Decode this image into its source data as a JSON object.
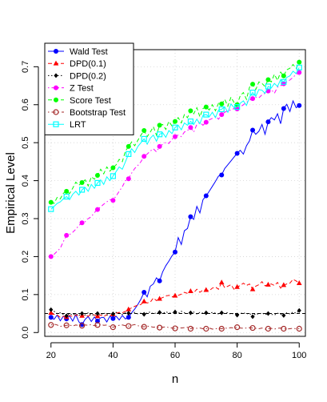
{
  "chart_data": {
    "type": "line",
    "title": "",
    "xlabel": "n",
    "ylabel": "Empirical Level",
    "xlim": [
      18,
      102
    ],
    "ylim": [
      -0.01,
      0.745
    ],
    "xticks": [
      20,
      40,
      60,
      80,
      100
    ],
    "yticks": [
      0.0,
      0.1,
      0.2,
      0.3,
      0.4,
      0.5,
      0.6,
      0.7
    ],
    "ytick_labels": [
      "0.0",
      "0.1",
      "0.2",
      "0.3",
      "0.4",
      "0.5",
      "0.6",
      "0.7"
    ],
    "grid": true,
    "reference_line": 0.05,
    "legend_position": "top-left",
    "x": [
      20,
      21,
      22,
      23,
      24,
      25,
      26,
      27,
      28,
      29,
      30,
      31,
      32,
      33,
      34,
      35,
      36,
      37,
      38,
      39,
      40,
      41,
      42,
      43,
      44,
      45,
      46,
      47,
      48,
      49,
      50,
      51,
      52,
      53,
      54,
      55,
      56,
      57,
      58,
      59,
      60,
      61,
      62,
      63,
      64,
      65,
      66,
      67,
      68,
      69,
      70,
      71,
      72,
      73,
      74,
      75,
      76,
      77,
      78,
      79,
      80,
      81,
      82,
      83,
      84,
      85,
      86,
      87,
      88,
      89,
      90,
      91,
      92,
      93,
      94,
      95,
      96,
      97,
      98,
      99,
      100
    ],
    "marker_x": [
      20,
      25,
      30,
      35,
      40,
      45,
      50,
      55,
      60,
      65,
      70,
      75,
      80,
      85,
      90,
      95,
      100
    ],
    "series": [
      {
        "name": "Wald Test",
        "color": "#0000ff",
        "marker": "circle-filled",
        "line": "solid",
        "values": [
          0.04,
          0.035,
          0.046,
          0.031,
          0.043,
          0.036,
          0.044,
          0.03,
          0.047,
          0.028,
          0.021,
          0.035,
          0.042,
          0.029,
          0.041,
          0.03,
          0.039,
          0.04,
          0.028,
          0.043,
          0.037,
          0.043,
          0.033,
          0.045,
          0.036,
          0.04,
          0.052,
          0.062,
          0.074,
          0.088,
          0.106,
          0.094,
          0.122,
          0.128,
          0.144,
          0.136,
          0.16,
          0.176,
          0.188,
          0.202,
          0.212,
          0.25,
          0.232,
          0.268,
          0.274,
          0.305,
          0.298,
          0.332,
          0.315,
          0.35,
          0.36,
          0.372,
          0.385,
          0.398,
          0.412,
          0.415,
          0.432,
          0.442,
          0.452,
          0.462,
          0.472,
          0.48,
          0.47,
          0.492,
          0.505,
          0.533,
          0.522,
          0.53,
          0.548,
          0.522,
          0.555,
          0.566,
          0.56,
          0.576,
          0.55,
          0.59,
          0.601,
          0.582,
          0.61,
          0.592,
          0.598
        ]
      },
      {
        "name": "DPD(0.1)",
        "color": "#ff0000",
        "marker": "triangle-filled",
        "line": "dashed",
        "values": [
          0.052,
          0.048,
          0.046,
          0.04,
          0.043,
          0.041,
          0.045,
          0.042,
          0.046,
          0.044,
          0.044,
          0.046,
          0.043,
          0.048,
          0.046,
          0.043,
          0.046,
          0.042,
          0.047,
          0.045,
          0.048,
          0.051,
          0.053,
          0.052,
          0.056,
          0.061,
          0.065,
          0.069,
          0.072,
          0.074,
          0.082,
          0.078,
          0.08,
          0.091,
          0.084,
          0.089,
          0.092,
          0.096,
          0.098,
          0.094,
          0.097,
          0.098,
          0.101,
          0.106,
          0.103,
          0.109,
          0.105,
          0.114,
          0.106,
          0.112,
          0.112,
          0.11,
          0.117,
          0.12,
          0.114,
          0.132,
          0.118,
          0.122,
          0.126,
          0.114,
          0.12,
          0.124,
          0.13,
          0.124,
          0.128,
          0.114,
          0.122,
          0.126,
          0.134,
          0.123,
          0.126,
          0.128,
          0.124,
          0.132,
          0.117,
          0.125,
          0.128,
          0.13,
          0.14,
          0.136,
          0.13
        ]
      },
      {
        "name": "DPD(0.2)",
        "color": "#000000",
        "marker": "diamond-filled",
        "line": "dotted",
        "values": [
          0.06,
          0.056,
          0.05,
          0.052,
          0.048,
          0.044,
          0.05,
          0.046,
          0.05,
          0.045,
          0.05,
          0.046,
          0.052,
          0.045,
          0.048,
          0.05,
          0.047,
          0.052,
          0.046,
          0.05,
          0.049,
          0.053,
          0.05,
          0.048,
          0.052,
          0.051,
          0.05,
          0.053,
          0.049,
          0.051,
          0.048,
          0.052,
          0.054,
          0.049,
          0.052,
          0.053,
          0.05,
          0.055,
          0.051,
          0.052,
          0.054,
          0.05,
          0.056,
          0.052,
          0.05,
          0.052,
          0.054,
          0.049,
          0.053,
          0.051,
          0.052,
          0.05,
          0.053,
          0.051,
          0.049,
          0.052,
          0.05,
          0.053,
          0.048,
          0.051,
          0.046,
          0.05,
          0.052,
          0.049,
          0.051,
          0.042,
          0.05,
          0.048,
          0.052,
          0.047,
          0.05,
          0.048,
          0.046,
          0.051,
          0.048,
          0.045,
          0.052,
          0.049,
          0.054,
          0.051,
          0.058
        ]
      },
      {
        "name": "Z Test",
        "color": "#ff00ff",
        "marker": "circle-filled",
        "line": "dotdash",
        "values": [
          0.2,
          0.206,
          0.214,
          0.222,
          0.24,
          0.256,
          0.258,
          0.264,
          0.272,
          0.282,
          0.289,
          0.292,
          0.3,
          0.305,
          0.316,
          0.324,
          0.331,
          0.338,
          0.344,
          0.35,
          0.348,
          0.36,
          0.372,
          0.384,
          0.4,
          0.405,
          0.42,
          0.432,
          0.44,
          0.45,
          0.464,
          0.47,
          0.478,
          0.484,
          0.476,
          0.49,
          0.496,
          0.501,
          0.498,
          0.509,
          0.516,
          0.52,
          0.516,
          0.528,
          0.532,
          0.54,
          0.528,
          0.548,
          0.553,
          0.546,
          0.554,
          0.56,
          0.564,
          0.57,
          0.562,
          0.574,
          0.58,
          0.584,
          0.586,
          0.59,
          0.589,
          0.594,
          0.6,
          0.606,
          0.612,
          0.616,
          0.62,
          0.618,
          0.626,
          0.63,
          0.636,
          0.64,
          0.63,
          0.646,
          0.65,
          0.655,
          0.66,
          0.665,
          0.672,
          0.68,
          0.685
        ]
      },
      {
        "name": "Score Test",
        "color": "#00ff00",
        "marker": "circle-filled",
        "line": "dashed",
        "values": [
          0.343,
          0.34,
          0.356,
          0.352,
          0.367,
          0.372,
          0.366,
          0.38,
          0.396,
          0.388,
          0.395,
          0.402,
          0.386,
          0.41,
          0.404,
          0.414,
          0.43,
          0.418,
          0.436,
          0.425,
          0.434,
          0.442,
          0.456,
          0.45,
          0.478,
          0.49,
          0.502,
          0.492,
          0.506,
          0.52,
          0.532,
          0.516,
          0.528,
          0.542,
          0.52,
          0.546,
          0.548,
          0.535,
          0.556,
          0.544,
          0.556,
          0.566,
          0.552,
          0.574,
          0.566,
          0.584,
          0.576,
          0.592,
          0.568,
          0.59,
          0.594,
          0.586,
          0.6,
          0.584,
          0.604,
          0.602,
          0.614,
          0.596,
          0.62,
          0.606,
          0.6,
          0.624,
          0.632,
          0.614,
          0.646,
          0.654,
          0.64,
          0.66,
          0.656,
          0.648,
          0.666,
          0.66,
          0.68,
          0.664,
          0.686,
          0.676,
          0.692,
          0.696,
          0.706,
          0.696,
          0.712
        ]
      },
      {
        "name": "Bootstrap Test",
        "color": "#a52a2a",
        "marker": "circle-open",
        "line": "dotdash",
        "values": [
          0.02,
          0.022,
          0.02,
          0.016,
          0.018,
          0.019,
          0.02,
          0.017,
          0.02,
          0.018,
          0.018,
          0.02,
          0.019,
          0.021,
          0.018,
          0.02,
          0.022,
          0.019,
          0.02,
          0.016,
          0.014,
          0.017,
          0.019,
          0.02,
          0.018,
          0.017,
          0.019,
          0.021,
          0.018,
          0.016,
          0.015,
          0.017,
          0.016,
          0.014,
          0.015,
          0.013,
          0.014,
          0.015,
          0.013,
          0.012,
          0.011,
          0.014,
          0.012,
          0.013,
          0.014,
          0.01,
          0.013,
          0.011,
          0.012,
          0.01,
          0.01,
          0.012,
          0.009,
          0.01,
          0.011,
          0.01,
          0.012,
          0.011,
          0.013,
          0.012,
          0.014,
          0.012,
          0.011,
          0.012,
          0.013,
          0.012,
          0.011,
          0.01,
          0.012,
          0.009,
          0.01,
          0.011,
          0.009,
          0.011,
          0.012,
          0.01,
          0.009,
          0.01,
          0.011,
          0.01,
          0.01
        ]
      },
      {
        "name": "LRT",
        "color": "#00ffff",
        "marker": "square-open",
        "line": "solid",
        "values": [
          0.325,
          0.332,
          0.34,
          0.344,
          0.352,
          0.358,
          0.35,
          0.364,
          0.372,
          0.362,
          0.376,
          0.382,
          0.372,
          0.39,
          0.38,
          0.394,
          0.402,
          0.39,
          0.41,
          0.4,
          0.412,
          0.424,
          0.436,
          0.43,
          0.45,
          0.47,
          0.484,
          0.474,
          0.49,
          0.5,
          0.51,
          0.496,
          0.512,
          0.52,
          0.504,
          0.522,
          0.526,
          0.514,
          0.532,
          0.524,
          0.54,
          0.546,
          0.534,
          0.552,
          0.546,
          0.556,
          0.548,
          0.562,
          0.55,
          0.572,
          0.574,
          0.568,
          0.58,
          0.566,
          0.586,
          0.588,
          0.594,
          0.58,
          0.602,
          0.592,
          0.594,
          0.604,
          0.61,
          0.598,
          0.62,
          0.632,
          0.622,
          0.64,
          0.638,
          0.63,
          0.648,
          0.644,
          0.656,
          0.648,
          0.666,
          0.66,
          0.672,
          0.676,
          0.688,
          0.682,
          0.698
        ]
      }
    ]
  }
}
